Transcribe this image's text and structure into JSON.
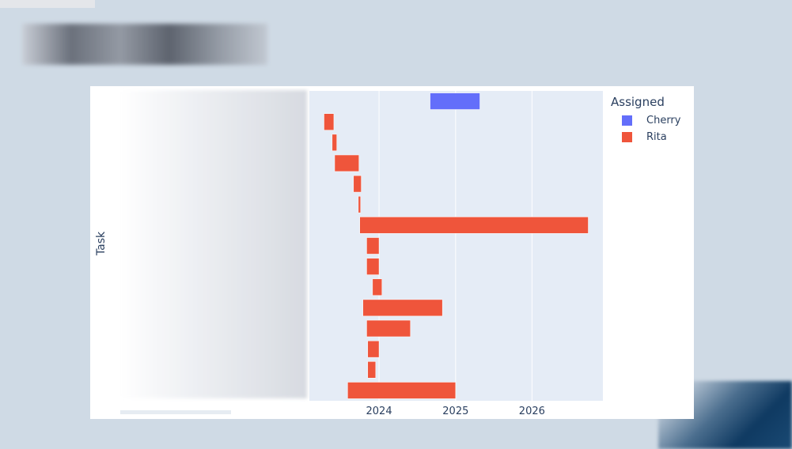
{
  "chart_data": {
    "type": "bar",
    "orientation": "horizontal",
    "subtype": "timeline",
    "ylabel": "Task",
    "xlabel": "",
    "xlim": [
      "2023-02-02",
      "2026-12-06"
    ],
    "x_ticks": [
      "2024",
      "2025",
      "2026"
    ],
    "grid": true,
    "legend": {
      "title": "Assigned",
      "placement": "right"
    },
    "series": [
      {
        "name": "Cherry",
        "color": "#636efa"
      },
      {
        "name": "Rita",
        "color": "#ef553b"
      }
    ],
    "tasks": [
      {
        "start": "2024-09-01",
        "end": "2025-04-27",
        "assigned": "Cherry"
      },
      {
        "start": "2023-04-13",
        "end": "2023-05-30",
        "assigned": "Rita"
      },
      {
        "start": "2023-05-22",
        "end": "2023-06-13",
        "assigned": "Rita"
      },
      {
        "start": "2023-06-03",
        "end": "2023-09-27",
        "assigned": "Rita"
      },
      {
        "start": "2023-09-01",
        "end": "2023-10-08",
        "assigned": "Rita"
      },
      {
        "start": "2023-09-24",
        "end": "2023-10-05",
        "assigned": "Rita"
      },
      {
        "start": "2023-10-01",
        "end": "2026-09-27",
        "assigned": "Rita"
      },
      {
        "start": "2023-11-03",
        "end": "2024-01-01",
        "assigned": "Rita"
      },
      {
        "start": "2023-11-03",
        "end": "2024-01-01",
        "assigned": "Rita"
      },
      {
        "start": "2023-12-01",
        "end": "2024-01-15",
        "assigned": "Rita"
      },
      {
        "start": "2023-10-16",
        "end": "2024-10-30",
        "assigned": "Rita"
      },
      {
        "start": "2023-11-03",
        "end": "2024-05-30",
        "assigned": "Rita"
      },
      {
        "start": "2023-11-08",
        "end": "2024-01-01",
        "assigned": "Rita"
      },
      {
        "start": "2023-11-08",
        "end": "2023-12-16",
        "assigned": "Rita"
      },
      {
        "start": "2023-08-04",
        "end": "2025-01-01",
        "assigned": "Rita"
      }
    ]
  }
}
